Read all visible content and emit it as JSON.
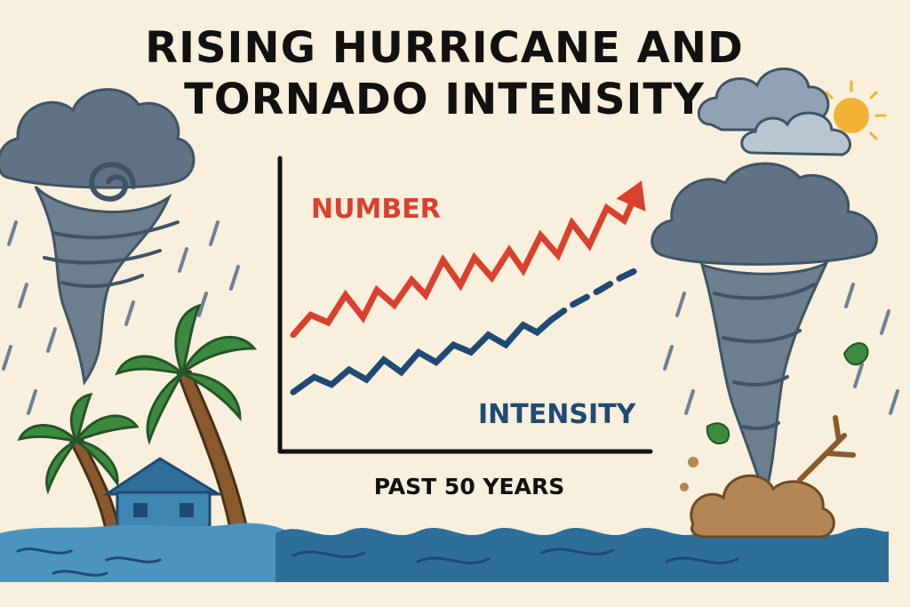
{
  "colors": {
    "background": "#f8efdc",
    "number_series": "#d9412e",
    "intensity_series": "#1f4a73",
    "sea": "#2e6f9a",
    "cloud": "#5f7384",
    "palm": "#3d8a3f",
    "trunk": "#8a5a2e",
    "sun": "#f2b233"
  },
  "icons": {
    "left": "hurricane-icon",
    "right": "tornado-icon",
    "top_right": "cloud-sun-icon",
    "house": "house-icon",
    "palms": "palm-tree-icon"
  },
  "chart_data": {
    "type": "line",
    "title": "RISING HURRICANE AND TORNADO INTENSITY",
    "xlabel": "PAST 50 YEARS",
    "ylabel": "",
    "grid": false,
    "legend": "inline labels",
    "xlim": [
      0,
      50
    ],
    "ylim": [
      0,
      100
    ],
    "series": [
      {
        "name": "NUMBER",
        "style": "solid line ending in arrow",
        "x": [
          0,
          2.5,
          5,
          7.5,
          10,
          12,
          14.5,
          17,
          19,
          21.5,
          24,
          26,
          28.5,
          31,
          33,
          35.5,
          38,
          40,
          42.5,
          45,
          47.5,
          50
        ],
        "values": [
          34,
          42,
          39,
          50,
          41,
          52,
          46,
          56,
          50,
          64,
          54,
          65,
          57,
          68,
          60,
          74,
          66,
          79,
          70,
          85,
          80,
          96
        ]
      },
      {
        "name": "INTENSITY",
        "style": "solid line, dashed projection",
        "solid_until_x": 37,
        "x": [
          0,
          3,
          5.5,
          8,
          10.5,
          13,
          15.5,
          18,
          20.5,
          23,
          25.5,
          28,
          30.5,
          33,
          35,
          37,
          40,
          44,
          47,
          50
        ],
        "values": [
          11,
          17,
          14,
          20,
          16,
          24,
          19,
          27,
          23,
          30,
          27,
          34,
          30,
          38,
          35,
          40,
          46,
          52,
          57,
          61
        ]
      }
    ]
  }
}
